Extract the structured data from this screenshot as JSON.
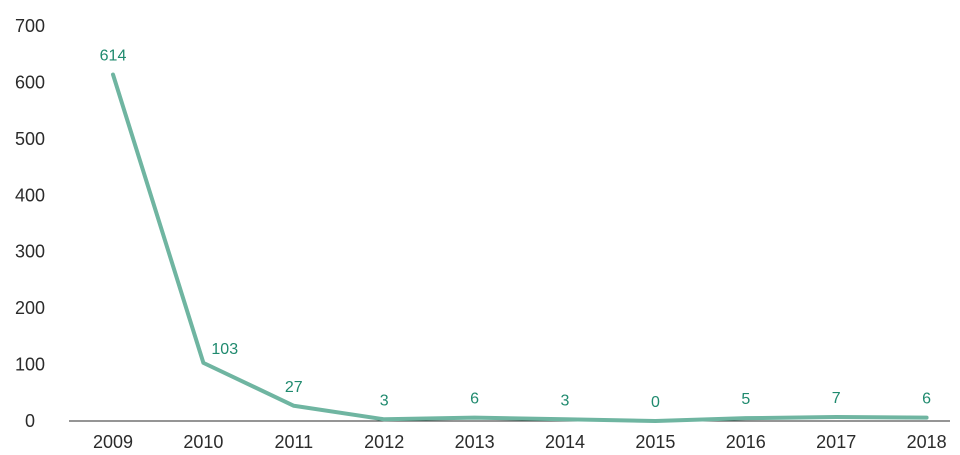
{
  "chart_data": {
    "type": "line",
    "categories": [
      "2009",
      "2010",
      "2011",
      "2012",
      "2013",
      "2014",
      "2015",
      "2016",
      "2017",
      "2018"
    ],
    "series": [
      {
        "values": [
          614,
          103,
          27,
          3,
          6,
          3,
          0,
          5,
          7,
          6
        ]
      }
    ],
    "ylim": [
      0,
      700
    ],
    "yticks": [
      "0",
      "100",
      "200",
      "300",
      "400",
      "500",
      "600",
      "700"
    ],
    "data_labels": [
      "614",
      "103",
      "27",
      "3",
      "6",
      "3",
      "0",
      "5",
      "7",
      "6"
    ],
    "grid": false,
    "colors": {
      "line": "#6fb5a1",
      "label": "#1f8a6e",
      "axis": "#2b2b2b",
      "text": "#2b2b2b"
    }
  }
}
